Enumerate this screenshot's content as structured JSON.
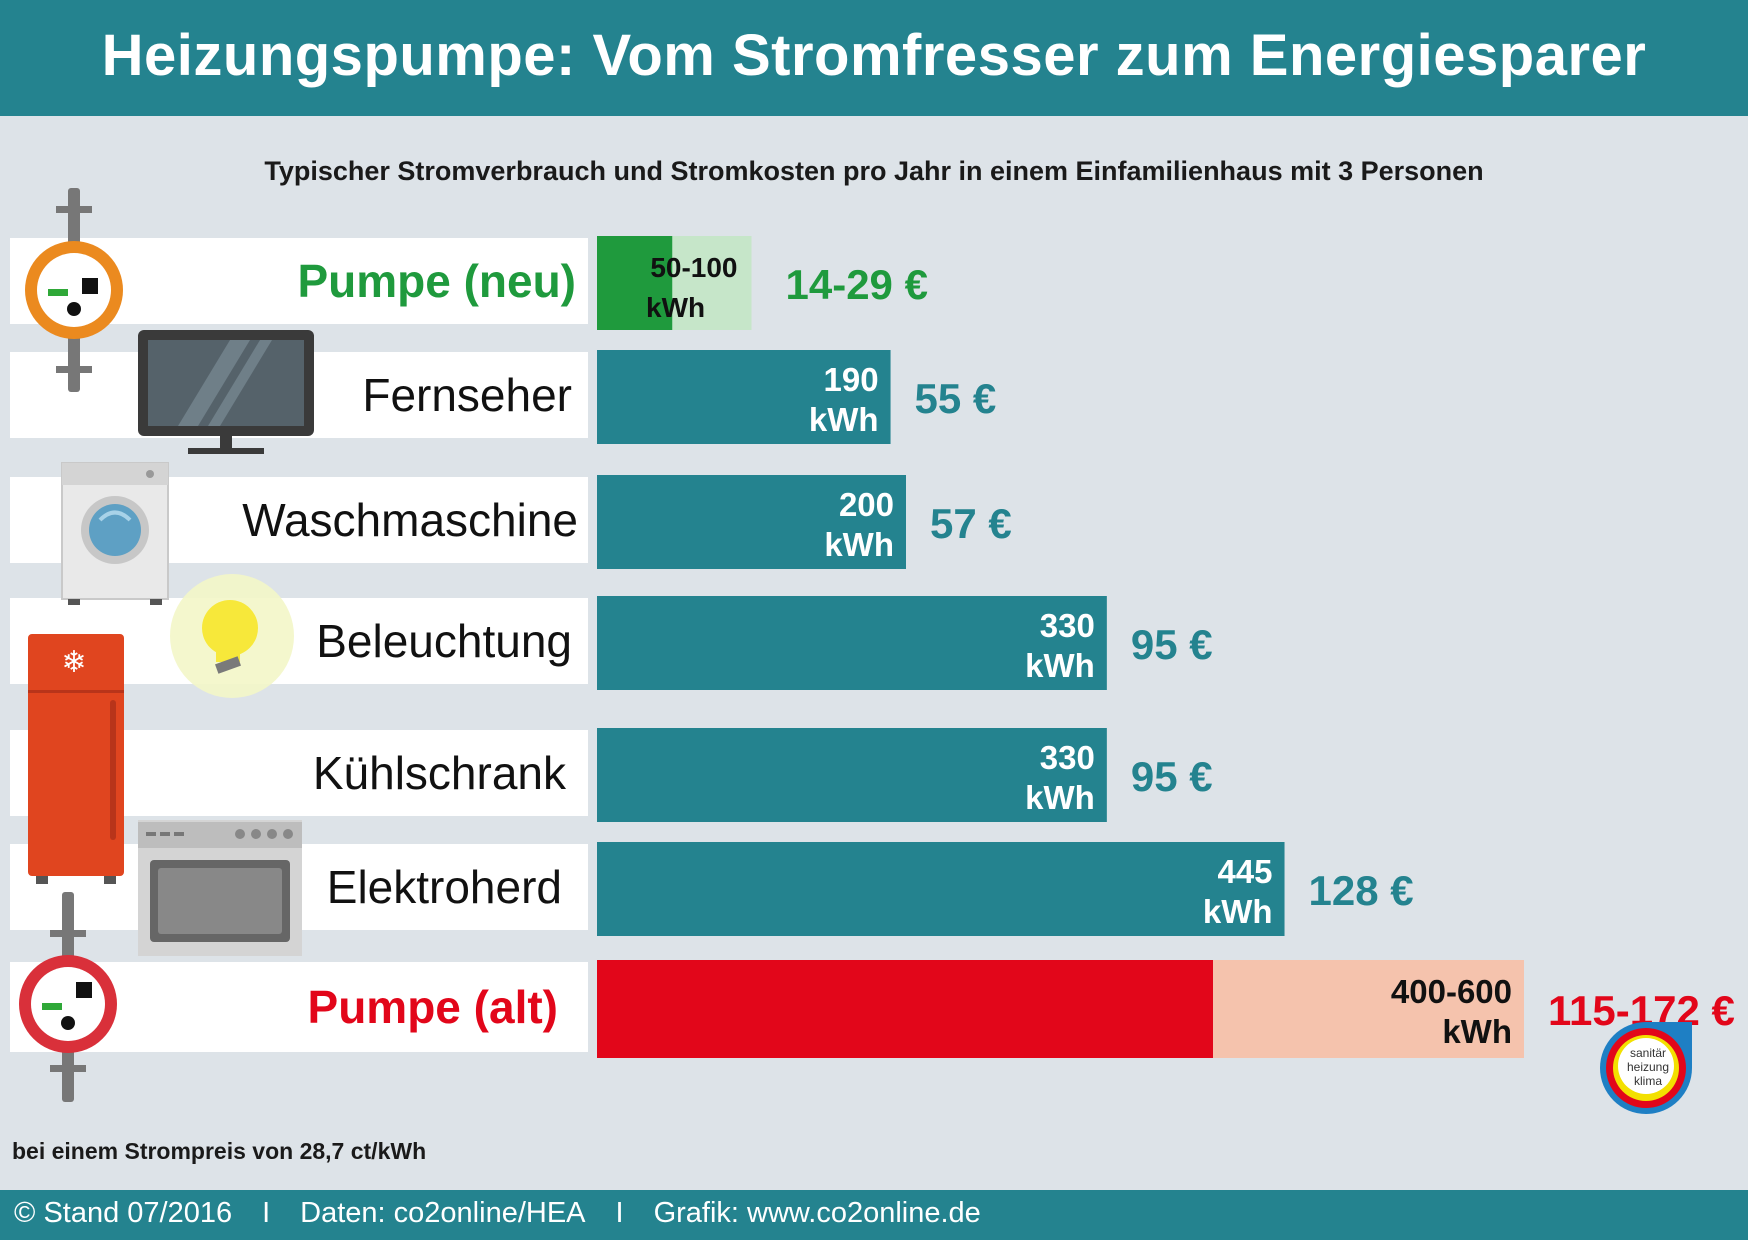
{
  "title": "Heizungspumpe: Vom Stromfresser zum Energiesparer",
  "subtitle": "Typischer Stromverbrauch und Stromkosten pro Jahr in einem Einfamilienhaus mit 3 Personen",
  "note": "bei einem Strompreis von 28,7 ct/kWh",
  "footer": {
    "copyright_symbol": "©",
    "stand": "Stand 07/2016",
    "separator": "I",
    "daten": "Daten: co2online/HEA",
    "grafik": "Grafik: www.co2online.de"
  },
  "brand": {
    "name": "co2online",
    "badge_lines": [
      "sanitär",
      "heizung",
      "klima"
    ]
  },
  "colors": {
    "teal": "#24838f",
    "green": "#1f9a3d",
    "green_light": "#c6e6c9",
    "red": "#e2061a",
    "red_light": "#f5c3ad",
    "value_teal": "#24838f"
  },
  "chart_data": {
    "type": "bar",
    "orientation": "horizontal",
    "title": "Heizungspumpe: Vom Stromfresser zum Energiesparer",
    "subtitle": "Typischer Stromverbrauch und Stromkosten pro Jahr in einem Einfamilienhaus mit 3 Personen",
    "unit": "kWh",
    "xlim": [
      0,
      620
    ],
    "categories": [
      "Pumpe (neu)",
      "Fernseher",
      "Waschmaschine",
      "Beleuchtung",
      "Kühlschrank",
      "Elektroherd",
      "Pumpe (alt)"
    ],
    "items": [
      {
        "label": "Pumpe (neu)",
        "kind": "range",
        "min": 50,
        "max": 100,
        "value_label": "50-100",
        "unit_label": "kWh",
        "cost": "14-29 €",
        "style": "green"
      },
      {
        "label": "Fernseher",
        "kind": "single",
        "value": 190,
        "value_label": "190",
        "unit_label": "kWh",
        "cost": "55 €",
        "style": "teal"
      },
      {
        "label": "Waschmaschine",
        "kind": "single",
        "value": 200,
        "value_label": "200",
        "unit_label": "kWh",
        "cost": "57 €",
        "style": "teal"
      },
      {
        "label": "Beleuchtung",
        "kind": "single",
        "value": 330,
        "value_label": "330",
        "unit_label": "kWh",
        "cost": "95 €",
        "style": "teal"
      },
      {
        "label": "Kühlschrank",
        "kind": "single",
        "value": 330,
        "value_label": "330",
        "unit_label": "kWh",
        "cost": "95 €",
        "style": "teal"
      },
      {
        "label": "Elektroherd",
        "kind": "single",
        "value": 445,
        "value_label": "445",
        "unit_label": "kWh",
        "cost": "128 €",
        "style": "teal"
      },
      {
        "label": "Pumpe (alt)",
        "kind": "range",
        "min": 400,
        "max": 600,
        "value_label": "400-600",
        "unit_label": "kWh",
        "cost": "115-172 €",
        "style": "red"
      }
    ],
    "icons": [
      "pump-new-icon",
      "tv-icon",
      "washing-machine-icon",
      "light-bulb-icon",
      "fridge-icon",
      "stove-icon",
      "pump-old-icon"
    ]
  }
}
